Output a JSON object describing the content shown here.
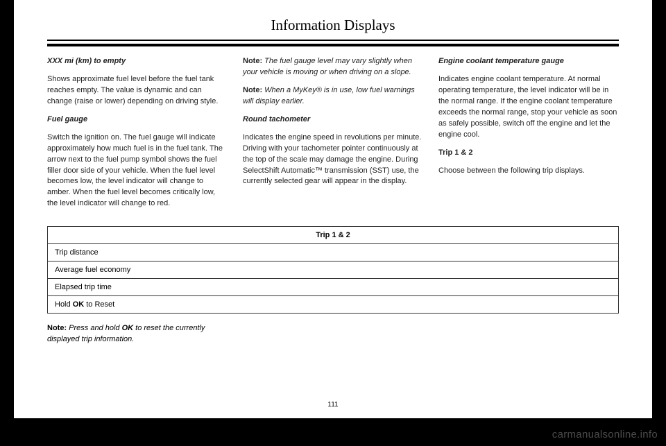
{
  "pageTitle": "Information Displays",
  "pageNumber": "111",
  "watermark": "carmanualsonline.info",
  "col1": {
    "h1": "XXX mi (km) to empty",
    "p1": "Shows approximate fuel level before the fuel tank reaches empty. The value is dynamic and can change (raise or lower) depending on driving style.",
    "h2": "Fuel gauge",
    "p2": "Switch the ignition on. The fuel gauge will indicate approximately how much fuel is in the fuel tank. The arrow next to the fuel pump symbol shows the fuel filler door side of your vehicle. When the fuel level becomes low, the level indicator will change to amber. When the fuel level becomes critically low, the level indicator will change to red."
  },
  "col2": {
    "n1label": "Note:",
    "n1text": " The fuel gauge level may vary slightly when your vehicle is moving or when driving on a slope.",
    "n2label": "Note:",
    "n2text": " When a MyKey® is in use, low fuel warnings will display earlier.",
    "h1": "Round tachometer",
    "p1": "Indicates the engine speed in revolutions per minute. Driving with your tachometer pointer continuously at the top of the scale may damage the engine. During SelectShift Automatic™ transmission (SST) use, the currently selected gear will appear in the display."
  },
  "col3": {
    "h1": "Engine coolant temperature gauge",
    "p1": "Indicates engine coolant temperature. At normal operating temperature, the level indicator will be in the normal range. If the engine coolant temperature exceeds the normal range, stop your vehicle as soon as safely possible, switch off the engine and let the engine cool.",
    "h2": "Trip 1 & 2",
    "p2": "Choose between the following trip displays."
  },
  "table": {
    "header": "Trip 1 & 2",
    "r1": "Trip distance",
    "r2": "Average fuel economy",
    "r3": "Elapsed trip time",
    "r4a": "Hold ",
    "r4b": "OK",
    "r4c": " to Reset"
  },
  "footnote": {
    "label": "Note:",
    "t1": " Press and hold ",
    "ok": "OK",
    "t2": " to reset the currently displayed trip information."
  }
}
